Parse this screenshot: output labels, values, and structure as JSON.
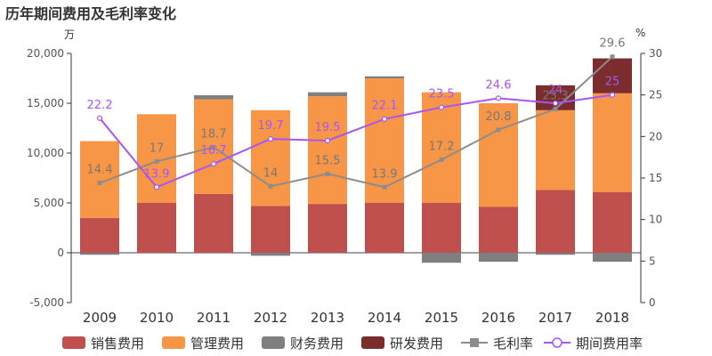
{
  "title": "历年期间费用及毛利率变化",
  "unit_left": "万",
  "unit_right": "%",
  "chart_data": {
    "type": "bar",
    "stacked": true,
    "categories": [
      "2009",
      "2010",
      "2011",
      "2012",
      "2013",
      "2014",
      "2015",
      "2016",
      "2017",
      "2018"
    ],
    "series": [
      {
        "name": "销售费用",
        "axis": "left",
        "color": "#c0504d",
        "values": [
          3500,
          5000,
          5900,
          4700,
          4900,
          5000,
          5000,
          4600,
          6300,
          6100
        ]
      },
      {
        "name": "管理费用",
        "axis": "left",
        "color": "#f79646",
        "values": [
          7700,
          8900,
          9500,
          9600,
          10800,
          12500,
          11100,
          10400,
          8000,
          9900
        ]
      },
      {
        "name": "财务费用",
        "axis": "left",
        "color": "#7f7f7f",
        "values": [
          -200,
          0,
          400,
          -300,
          400,
          200,
          -1000,
          -900,
          -200,
          -900
        ]
      },
      {
        "name": "研发费用",
        "axis": "left",
        "color": "#7b2c2c",
        "values": [
          0,
          0,
          0,
          0,
          0,
          0,
          0,
          0,
          2500,
          3500
        ]
      },
      {
        "name": "毛利率",
        "axis": "right",
        "kind": "line",
        "color": "#8c8c8c",
        "values": [
          14.4,
          17,
          18.7,
          14,
          15.5,
          13.9,
          17.2,
          20.8,
          23.3,
          29.6
        ],
        "labels": [
          "14.4",
          "17",
          "18.7",
          "14",
          "15.5",
          "13.9",
          "17.2",
          "20.8",
          "23.3",
          "29.6"
        ]
      },
      {
        "name": "期间费用率",
        "axis": "right",
        "kind": "line",
        "color": "#a855f7",
        "values": [
          22.2,
          13.9,
          16.7,
          19.7,
          19.5,
          22.1,
          23.5,
          24.6,
          24,
          25
        ],
        "labels": [
          "22.2",
          "13.9",
          "16.7",
          "19.7",
          "19.5",
          "22.1",
          "23.5",
          "24.6",
          "24",
          "25"
        ]
      }
    ],
    "y_left": {
      "min": -5000,
      "max": 20000,
      "ticks": [
        "-5,000",
        "0",
        "5,000",
        "10,000",
        "15,000",
        "20,000"
      ],
      "tick_values": [
        -5000,
        0,
        5000,
        10000,
        15000,
        20000
      ]
    },
    "y_right": {
      "min": 0,
      "max": 30,
      "ticks": [
        "0",
        "5",
        "10",
        "15",
        "20",
        "25",
        "30"
      ],
      "tick_values": [
        0,
        5,
        10,
        15,
        20,
        25,
        30
      ]
    },
    "grid": false,
    "legend_position": "bottom"
  }
}
